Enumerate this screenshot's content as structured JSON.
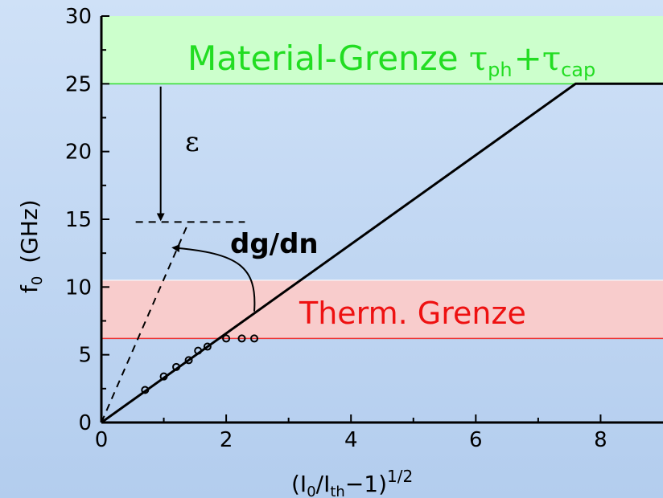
{
  "chart_data": {
    "type": "line",
    "xlabel": {
      "base": "(I",
      "sub1": "0",
      "mid": "/I",
      "sub2": "th",
      "tail": "−1)",
      "sup": "1/2"
    },
    "ylabel": {
      "base": "f",
      "sub": "0",
      "unit": "(GHz)"
    },
    "xlim": [
      0,
      9
    ],
    "ylim": [
      0,
      30
    ],
    "x_ticks": [
      0,
      2,
      4,
      6,
      8
    ],
    "y_ticks": [
      0,
      5,
      10,
      15,
      20,
      25,
      30
    ],
    "x_tick_labels": [
      "0",
      "2",
      "4",
      "6",
      "8"
    ],
    "y_tick_labels": [
      "0",
      "5",
      "10",
      "15",
      "20",
      "25",
      "30"
    ],
    "grid": false,
    "bands": [
      {
        "name": "material-limit",
        "y0": 25,
        "y1": 30,
        "fill": "#ccffcc",
        "line": "#33dd33",
        "label_main": "Material-Grenze ",
        "label_tau1": "τ",
        "label_sub1": "ph",
        "label_plus": "+",
        "label_tau2": "τ",
        "label_sub2": "cap",
        "color": "#22dd22"
      },
      {
        "name": "thermal-limit",
        "y0": 6.2,
        "y1": 10.5,
        "fill": "#f8cccc",
        "line": "#ee3333",
        "label_main": "Therm. Grenze",
        "color": "#ee1111"
      }
    ],
    "series": [
      {
        "style": "solid",
        "points": [
          [
            0,
            0
          ],
          [
            7.6,
            25
          ],
          [
            9,
            25
          ]
        ],
        "color": "#000000"
      },
      {
        "style": "dashed",
        "points": [
          [
            0,
            0
          ],
          [
            1.4,
            14.8
          ]
        ],
        "color": "#000000"
      },
      {
        "style": "scatter-open",
        "points": [
          [
            0.7,
            2.4
          ],
          [
            1.0,
            3.4
          ],
          [
            1.2,
            4.1
          ],
          [
            1.4,
            4.6
          ],
          [
            1.55,
            5.3
          ],
          [
            1.7,
            5.6
          ],
          [
            2.0,
            6.2
          ],
          [
            2.25,
            6.2
          ],
          [
            2.45,
            6.2
          ]
        ],
        "color": "#000000"
      }
    ],
    "annotations": {
      "epsilon": "ε",
      "dgdn": "dg/dn",
      "dashed_level": 14.8
    }
  }
}
